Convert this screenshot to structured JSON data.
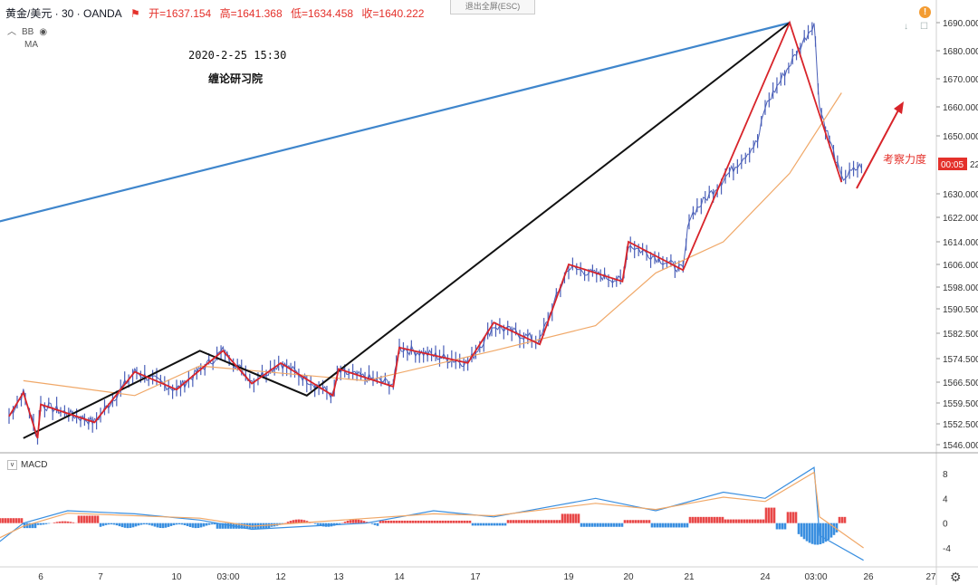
{
  "header": {
    "symbol": "黄金/美元 · 30 · OANDA",
    "open_label": "开",
    "open": "=1637.154",
    "high_label": "高",
    "high": "=1641.368",
    "low_label": "低",
    "low": "=1634.458",
    "close_label": "收",
    "close": "=1640.222",
    "indicators": [
      "BB",
      "MA"
    ],
    "exit_fullscreen": "退出全屏(ESC)"
  },
  "annotations": {
    "date": "2020-2-25 15:30",
    "org": "缠论研习院",
    "note": "考察力度",
    "current_time_badge": "00:05"
  },
  "macd": {
    "label": "MACD"
  },
  "colors": {
    "up": "#4a5fb8",
    "down": "#4a5fb8",
    "ma": "#f0a868",
    "red_stroke": "#d8242a",
    "black_stroke": "#111111",
    "blue_trend": "#3f86cc",
    "hist_pos": "#e84848",
    "hist_neg": "#3a8fe0",
    "macd_line": "#3a8fe0",
    "signal_line": "#f0a868"
  },
  "chart_data": [
    {
      "type": "candlestick",
      "title": "黄金/美元 · 30 · OANDA",
      "xlabel": "",
      "ylabel": "",
      "x_ticks": [
        "6",
        "7",
        "10",
        "03:00",
        "12",
        "13",
        "14",
        "17",
        "19",
        "20",
        "21",
        "24",
        "03:00",
        "26",
        "27"
      ],
      "y_ticks": [
        "1546.000",
        "1552.500",
        "1559.500",
        "1566.500",
        "1574.500",
        "1582.500",
        "1590.500",
        "1598.000",
        "1606.000",
        "1614.000",
        "1622.000",
        "1630.000",
        "1640.222",
        "1650.000",
        "1660.000",
        "1670.000",
        "1680.000",
        "1690.000"
      ],
      "ylim": [
        1543,
        1693
      ],
      "price_path_keypoints": [
        {
          "x": "Feb 5",
          "y": 1555
        },
        {
          "x": "Feb 5",
          "y": 1563
        },
        {
          "x": "Feb 5",
          "y": 1548
        },
        {
          "x": "Feb 6",
          "y": 1559
        },
        {
          "x": "Feb 6",
          "y": 1553
        },
        {
          "x": "Feb 7",
          "y": 1570
        },
        {
          "x": "Feb 10",
          "y": 1564
        },
        {
          "x": "Feb 10",
          "y": 1577
        },
        {
          "x": "Feb 11",
          "y": 1567
        },
        {
          "x": "Feb 12",
          "y": 1573
        },
        {
          "x": "Feb 12",
          "y": 1562
        },
        {
          "x": "Feb 13",
          "y": 1570
        },
        {
          "x": "Feb 13",
          "y": 1566
        },
        {
          "x": "Feb 14",
          "y": 1578
        },
        {
          "x": "Feb 14",
          "y": 1573
        },
        {
          "x": "Feb 17",
          "y": 1585
        },
        {
          "x": "Feb 18",
          "y": 1580
        },
        {
          "x": "Feb 19",
          "y": 1605
        },
        {
          "x": "Feb 19",
          "y": 1600
        },
        {
          "x": "Feb 20",
          "y": 1613
        },
        {
          "x": "Feb 20",
          "y": 1604
        },
        {
          "x": "Feb 21",
          "y": 1622
        },
        {
          "x": "Feb 21",
          "y": 1648
        },
        {
          "x": "Feb 24",
          "y": 1660
        },
        {
          "x": "Feb 24",
          "y": 1690
        },
        {
          "x": "Feb 25",
          "y": 1660
        },
        {
          "x": "Feb 25",
          "y": 1635
        },
        {
          "x": "Feb 25",
          "y": 1640.222
        }
      ],
      "moving_average_keypoints": [
        {
          "x": "Feb 5",
          "y": 1567
        },
        {
          "x": "Feb 7",
          "y": 1562
        },
        {
          "x": "Feb 10",
          "y": 1572
        },
        {
          "x": "Feb 13",
          "y": 1567
        },
        {
          "x": "Feb 17",
          "y": 1577
        },
        {
          "x": "Feb 19",
          "y": 1585
        },
        {
          "x": "Feb 20",
          "y": 1603
        },
        {
          "x": "Feb 21",
          "y": 1614
        },
        {
          "x": "Feb 24",
          "y": 1637
        },
        {
          "x": "Feb 25",
          "y": 1665
        }
      ],
      "red_strokes": [
        {
          "x": "Feb 5",
          "y": 1555
        },
        {
          "x": "Feb 5",
          "y": 1563
        },
        {
          "x": "Feb 5",
          "y": 1548
        },
        {
          "x": "Feb 6",
          "y": 1559
        },
        {
          "x": "Feb 6",
          "y": 1553
        },
        {
          "x": "Feb 7",
          "y": 1570
        },
        {
          "x": "Feb 10",
          "y": 1564
        },
        {
          "x": "Feb 10",
          "y": 1577
        },
        {
          "x": "Feb 11",
          "y": 1566
        },
        {
          "x": "Feb 12",
          "y": 1573
        },
        {
          "x": "Feb 12",
          "y": 1562
        },
        {
          "x": "Feb 13",
          "y": 1571
        },
        {
          "x": "Feb 13",
          "y": 1565
        },
        {
          "x": "Feb 14",
          "y": 1578
        },
        {
          "x": "Feb 14",
          "y": 1573
        },
        {
          "x": "Feb 17",
          "y": 1586
        },
        {
          "x": "Feb 18",
          "y": 1579
        },
        {
          "x": "Feb 19",
          "y": 1606
        },
        {
          "x": "Feb 19",
          "y": 1600
        },
        {
          "x": "Feb 20",
          "y": 1614
        },
        {
          "x": "Feb 20",
          "y": 1604
        },
        {
          "x": "Feb 24",
          "y": 1690
        },
        {
          "x": "Feb 25",
          "y": 1634
        }
      ],
      "black_strokes": [
        {
          "x": "Feb 5",
          "y": 1548
        },
        {
          "x": "Feb 10",
          "y": 1577
        },
        {
          "x": "Feb 12",
          "y": 1562
        },
        {
          "x": "Feb 24",
          "y": 1690
        }
      ],
      "blue_trend_line": [
        {
          "x": "Feb 4",
          "y": 1620
        },
        {
          "x": "Feb 24",
          "y": 1690
        }
      ],
      "arrow_note": "考察力度"
    },
    {
      "type": "line",
      "title": "MACD",
      "y_ticks": [
        "8",
        "4",
        "0",
        "-4"
      ],
      "ylim": [
        -6.5,
        9.5
      ],
      "macd_keypoints": [
        {
          "x": "Feb 4",
          "y": -4
        },
        {
          "x": "Feb 5",
          "y": 0
        },
        {
          "x": "Feb 6",
          "y": 2
        },
        {
          "x": "Feb 7",
          "y": 1.5
        },
        {
          "x": "Feb 10",
          "y": 0.5
        },
        {
          "x": "Feb 11",
          "y": -1
        },
        {
          "x": "Feb 13",
          "y": 0
        },
        {
          "x": "Feb 14",
          "y": 2
        },
        {
          "x": "Feb 17",
          "y": 1
        },
        {
          "x": "Feb 19",
          "y": 4
        },
        {
          "x": "Feb 20",
          "y": 2
        },
        {
          "x": "Feb 21",
          "y": 5
        },
        {
          "x": "Feb 24",
          "y": 4
        },
        {
          "x": "Feb 24",
          "y": 9
        },
        {
          "x": "Feb 25",
          "y": -2
        },
        {
          "x": "Feb 25",
          "y": -6
        }
      ],
      "signal_keypoints": [
        {
          "x": "Feb 4",
          "y": -3
        },
        {
          "x": "Feb 5",
          "y": -0.5
        },
        {
          "x": "Feb 6",
          "y": 1.6
        },
        {
          "x": "Feb 10",
          "y": 0.8
        },
        {
          "x": "Feb 11",
          "y": -0.5
        },
        {
          "x": "Feb 14",
          "y": 1.5
        },
        {
          "x": "Feb 17",
          "y": 1.2
        },
        {
          "x": "Feb 19",
          "y": 3.2
        },
        {
          "x": "Feb 20",
          "y": 2.2
        },
        {
          "x": "Feb 21",
          "y": 4.2
        },
        {
          "x": "Feb 24",
          "y": 3.5
        },
        {
          "x": "Feb 24",
          "y": 8.2
        },
        {
          "x": "Feb 25",
          "y": 1
        },
        {
          "x": "Feb 25",
          "y": -4
        }
      ]
    }
  ]
}
